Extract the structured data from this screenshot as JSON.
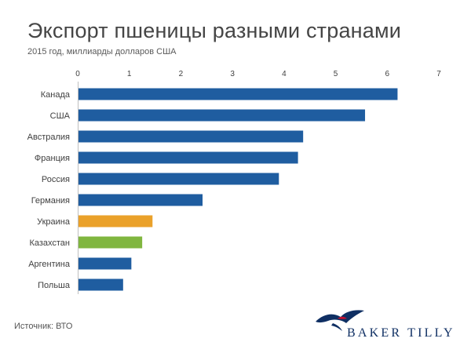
{
  "title": "Экспорт пшеницы разными странами",
  "subtitle": "2015 год, миллиарды долларов США",
  "source": "Источник: ВТО",
  "brand": {
    "name": "BAKER TILLY",
    "logo_icon": "bird-logo-icon"
  },
  "colors": {
    "default": "#1f5da0",
    "ukraine": "#eaa12a",
    "kazakhstan": "#80b63f",
    "axis": "#bfbfbf",
    "text": "#404040"
  },
  "chart_data": {
    "type": "bar",
    "orientation": "horizontal",
    "title": "Экспорт пшеницы разными странами",
    "subtitle": "2015 год, миллиарды долларов США",
    "xlim": [
      0,
      7
    ],
    "xticks": [
      0,
      1,
      2,
      3,
      4,
      5,
      6,
      7
    ],
    "grid": false,
    "categories": [
      "Канада",
      "США",
      "Австралия",
      "Франция",
      "Россия",
      "Германия",
      "Украина",
      "Казахстан",
      "Аргентина",
      "Польша"
    ],
    "values": [
      6.2,
      5.57,
      4.37,
      4.27,
      3.9,
      2.42,
      1.45,
      1.25,
      1.04,
      0.88
    ],
    "bar_colors": [
      "default",
      "default",
      "default",
      "default",
      "default",
      "default",
      "ukraine",
      "kazakhstan",
      "default",
      "default"
    ]
  }
}
